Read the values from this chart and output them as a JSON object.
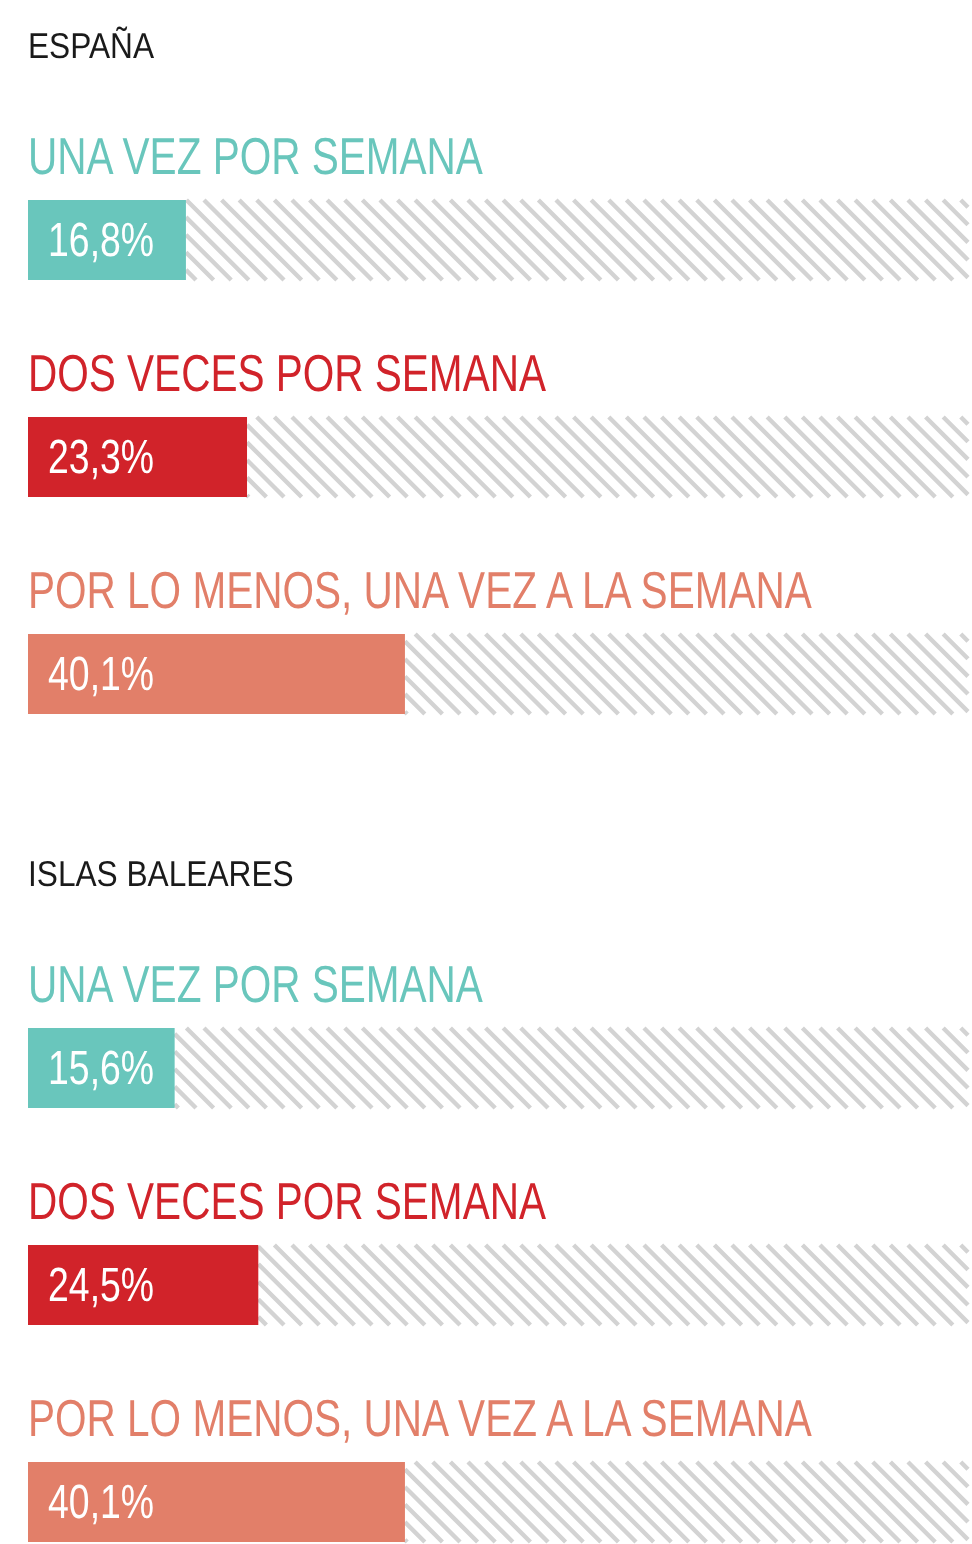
{
  "chart_data": [
    {
      "type": "bar",
      "orientation": "horizontal",
      "title": "ESPAÑA",
      "categories": [
        "UNA VEZ POR SEMANA",
        "DOS VECES POR SEMANA",
        "POR LO MENOS, UNA VEZ A LA SEMANA"
      ],
      "values": [
        16.8,
        23.3,
        40.1
      ],
      "colors": [
        "#69c6bc",
        "#d1232a",
        "#e27f69"
      ],
      "value_labels": [
        "16,8%",
        "23,3%",
        "40,1%"
      ],
      "xlim": [
        0,
        100
      ],
      "tick_labels": "y"
    },
    {
      "type": "bar",
      "orientation": "horizontal",
      "title": "ISLAS BALEARES",
      "categories": [
        "UNA VEZ POR SEMANA",
        "DOS VECES POR SEMANA",
        "POR LO MENOS, UNA VEZ A LA SEMANA"
      ],
      "values": [
        15.6,
        24.5,
        40.1
      ],
      "colors": [
        "#69c6bc",
        "#d1232a",
        "#e27f69"
      ],
      "value_labels": [
        "15,6%",
        "24,5%",
        "40,1%"
      ],
      "xlim": [
        0,
        100
      ],
      "tick_labels": "y"
    }
  ]
}
